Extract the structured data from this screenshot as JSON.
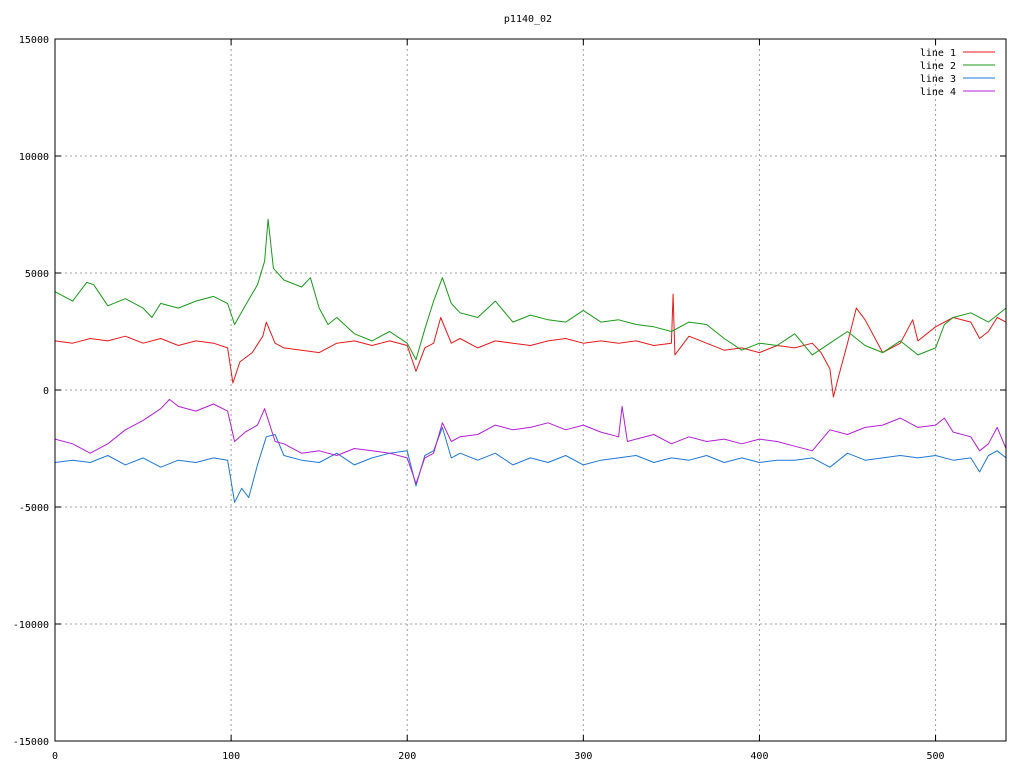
{
  "chart_data": {
    "type": "line",
    "title": "p1140_02",
    "xlabel": "",
    "ylabel": "",
    "xlim": [
      0,
      540
    ],
    "ylim": [
      -15000,
      15000
    ],
    "x_ticks": [
      0,
      100,
      200,
      300,
      400,
      500
    ],
    "y_ticks": [
      15000,
      10000,
      5000,
      0,
      -5000,
      -10000,
      -15000
    ],
    "grid": true,
    "legend_position": "top-right",
    "series": [
      {
        "name": "line 1",
        "color": "#e41a1c",
        "x": [
          0,
          10,
          20,
          30,
          40,
          50,
          60,
          70,
          80,
          90,
          98,
          101,
          105,
          112,
          118,
          120,
          125,
          130,
          140,
          150,
          160,
          170,
          180,
          190,
          200,
          205,
          210,
          215,
          219,
          225,
          230,
          240,
          250,
          260,
          270,
          280,
          290,
          300,
          310,
          320,
          330,
          340,
          350,
          351,
          352,
          360,
          370,
          380,
          390,
          400,
          410,
          420,
          430,
          435,
          440,
          442,
          445,
          450,
          455,
          460,
          470,
          480,
          487,
          490,
          500,
          510,
          520,
          525,
          530,
          535,
          540
        ],
        "values": [
          2100,
          2000,
          2200,
          2100,
          2300,
          2000,
          2200,
          1900,
          2100,
          2000,
          1800,
          300,
          1200,
          1600,
          2300,
          2900,
          2000,
          1800,
          1700,
          1600,
          2000,
          2100,
          1900,
          2100,
          1900,
          800,
          1800,
          2000,
          3100,
          2000,
          2200,
          1800,
          2100,
          2000,
          1900,
          2100,
          2200,
          2000,
          2100,
          2000,
          2100,
          1900,
          2000,
          4100,
          1500,
          2300,
          2000,
          1700,
          1800,
          1600,
          1900,
          1800,
          2000,
          1600,
          900,
          -300,
          600,
          2000,
          3500,
          3000,
          1600,
          2000,
          3000,
          2100,
          2700,
          3100,
          2900,
          2200,
          2500,
          3100,
          2900
        ]
      },
      {
        "name": "line 2",
        "color": "#1a9a1a",
        "x": [
          0,
          10,
          18,
          22,
          30,
          40,
          50,
          55,
          60,
          70,
          80,
          90,
          98,
          102,
          108,
          115,
          119,
          121,
          124,
          130,
          140,
          145,
          150,
          155,
          160,
          170,
          180,
          190,
          200,
          205,
          210,
          215,
          220,
          225,
          230,
          240,
          250,
          260,
          270,
          280,
          290,
          300,
          310,
          320,
          330,
          340,
          350,
          360,
          370,
          380,
          390,
          400,
          410,
          420,
          430,
          440,
          450,
          460,
          470,
          480,
          490,
          500,
          505,
          510,
          520,
          530,
          540
        ],
        "values": [
          4200,
          3800,
          4600,
          4500,
          3600,
          3900,
          3500,
          3100,
          3700,
          3500,
          3800,
          4000,
          3700,
          2800,
          3600,
          4500,
          5500,
          7300,
          5200,
          4700,
          4400,
          4800,
          3500,
          2800,
          3100,
          2400,
          2100,
          2500,
          2000,
          1300,
          2600,
          3800,
          4800,
          3700,
          3300,
          3100,
          3800,
          2900,
          3200,
          3000,
          2900,
          3400,
          2900,
          3000,
          2800,
          2700,
          2500,
          2900,
          2800,
          2200,
          1700,
          2000,
          1900,
          2400,
          1500,
          2000,
          2500,
          1900,
          1600,
          2100,
          1500,
          1800,
          2800,
          3100,
          3300,
          2900,
          3500
        ]
      },
      {
        "name": "line 3",
        "color": "#1f78d4",
        "x": [
          0,
          10,
          20,
          30,
          40,
          50,
          60,
          70,
          80,
          90,
          98,
          102,
          106,
          110,
          115,
          120,
          125,
          130,
          140,
          150,
          160,
          170,
          180,
          190,
          200,
          205,
          210,
          215,
          220,
          225,
          230,
          240,
          250,
          260,
          270,
          280,
          290,
          300,
          310,
          320,
          330,
          340,
          350,
          360,
          370,
          380,
          390,
          400,
          410,
          420,
          430,
          440,
          450,
          460,
          470,
          480,
          490,
          500,
          510,
          520,
          525,
          530,
          535,
          540
        ],
        "values": [
          -3100,
          -3000,
          -3100,
          -2800,
          -3200,
          -2900,
          -3300,
          -3000,
          -3100,
          -2900,
          -3000,
          -4800,
          -4200,
          -4600,
          -3200,
          -2000,
          -1900,
          -2800,
          -3000,
          -3100,
          -2700,
          -3200,
          -2900,
          -2700,
          -2600,
          -4100,
          -2800,
          -2600,
          -1600,
          -2900,
          -2700,
          -3000,
          -2700,
          -3200,
          -2900,
          -3100,
          -2800,
          -3200,
          -3000,
          -2900,
          -2800,
          -3100,
          -2900,
          -3000,
          -2800,
          -3100,
          -2900,
          -3100,
          -3000,
          -3000,
          -2900,
          -3300,
          -2700,
          -3000,
          -2900,
          -2800,
          -2900,
          -2800,
          -3000,
          -2900,
          -3500,
          -2800,
          -2600,
          -2900
        ]
      },
      {
        "name": "line 4",
        "color": "#b41fd6",
        "x": [
          0,
          10,
          20,
          30,
          40,
          50,
          60,
          65,
          70,
          80,
          90,
          98,
          102,
          108,
          115,
          119,
          125,
          130,
          140,
          150,
          160,
          170,
          180,
          190,
          200,
          205,
          210,
          215,
          220,
          225,
          230,
          240,
          250,
          260,
          270,
          280,
          290,
          300,
          310,
          320,
          322,
          325,
          330,
          340,
          350,
          360,
          370,
          380,
          390,
          400,
          410,
          420,
          430,
          440,
          450,
          460,
          470,
          480,
          490,
          500,
          505,
          510,
          520,
          525,
          530,
          535,
          540
        ],
        "values": [
          -2100,
          -2300,
          -2700,
          -2300,
          -1700,
          -1300,
          -800,
          -400,
          -700,
          -900,
          -600,
          -900,
          -2200,
          -1800,
          -1500,
          -800,
          -2200,
          -2300,
          -2700,
          -2600,
          -2800,
          -2500,
          -2600,
          -2700,
          -2900,
          -4000,
          -2900,
          -2700,
          -1400,
          -2200,
          -2000,
          -1900,
          -1500,
          -1700,
          -1600,
          -1400,
          -1700,
          -1500,
          -1800,
          -2000,
          -700,
          -2200,
          -2100,
          -1900,
          -2300,
          -2000,
          -2200,
          -2100,
          -2300,
          -2100,
          -2200,
          -2400,
          -2600,
          -1700,
          -1900,
          -1600,
          -1500,
          -1200,
          -1600,
          -1500,
          -1200,
          -1800,
          -2000,
          -2600,
          -2300,
          -1600,
          -2500
        ]
      }
    ]
  }
}
